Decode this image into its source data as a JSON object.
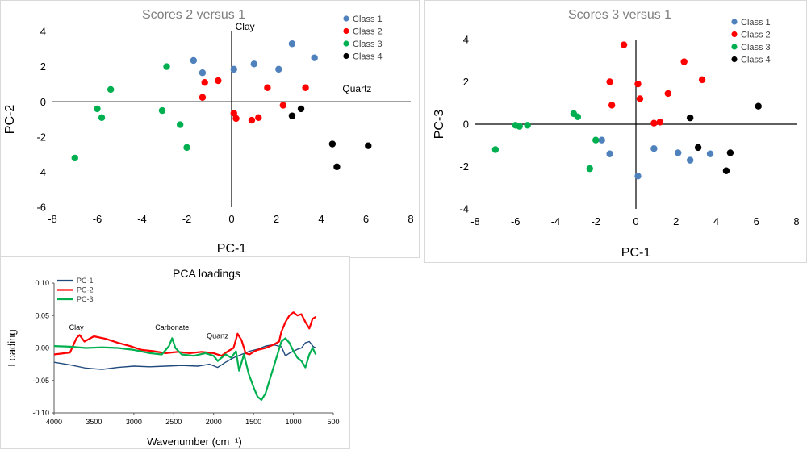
{
  "charts": [
    {
      "type": "scatter",
      "title": "Scores 2 versus 1",
      "xlabel": "PC-1",
      "ylabel": "PC-2",
      "xlim": [
        -8,
        8
      ],
      "ylim": [
        -6,
        4
      ],
      "xticks": [
        -8,
        -6,
        -4,
        -2,
        0,
        2,
        4,
        6,
        8
      ],
      "yticks": [
        -6,
        -4,
        -2,
        0,
        2,
        4
      ],
      "grid": false,
      "legend_position": "top-right",
      "annotations": [
        {
          "text": "Clay",
          "x": 0.6,
          "y": 4.1
        },
        {
          "text": "Quartz",
          "x": 5.6,
          "y": 0.55
        }
      ],
      "series": [
        {
          "name": "Class 1",
          "color": "#4f81bd",
          "points": [
            [
              -1.7,
              2.35
            ],
            [
              -1.3,
              1.65
            ],
            [
              0.1,
              1.85
            ],
            [
              1.0,
              2.15
            ],
            [
              2.1,
              1.85
            ],
            [
              2.7,
              3.3
            ],
            [
              3.7,
              2.5
            ]
          ]
        },
        {
          "name": "Class 2",
          "color": "#ff0000",
          "points": [
            [
              -1.2,
              1.1
            ],
            [
              -0.6,
              1.2
            ],
            [
              -1.3,
              0.25
            ],
            [
              1.6,
              0.8
            ],
            [
              3.3,
              0.8
            ],
            [
              0.1,
              -0.65
            ],
            [
              0.2,
              -0.95
            ],
            [
              0.9,
              -1.05
            ],
            [
              1.2,
              -0.9
            ],
            [
              2.3,
              -0.2
            ]
          ]
        },
        {
          "name": "Class 3",
          "color": "#00b050",
          "points": [
            [
              -7.0,
              -3.2
            ],
            [
              -6.0,
              -0.4
            ],
            [
              -5.8,
              -0.9
            ],
            [
              -5.4,
              0.7
            ],
            [
              -3.1,
              -0.5
            ],
            [
              -2.9,
              2.0
            ],
            [
              -2.3,
              -1.3
            ],
            [
              -2.0,
              -2.6
            ]
          ]
        },
        {
          "name": "Class 4",
          "color": "#000000",
          "points": [
            [
              2.7,
              -0.8
            ],
            [
              3.1,
              -0.4
            ],
            [
              4.5,
              -2.4
            ],
            [
              4.7,
              -3.7
            ],
            [
              6.1,
              -2.5
            ]
          ]
        }
      ]
    },
    {
      "type": "scatter",
      "title": "Scores 3 versus 1",
      "xlabel": "PC-1",
      "ylabel": "PC-3",
      "xlim": [
        -8,
        8
      ],
      "ylim": [
        -4,
        4
      ],
      "xticks": [
        -8,
        -6,
        -4,
        -2,
        0,
        2,
        4,
        6,
        8
      ],
      "yticks": [
        -4,
        -2,
        0,
        2,
        4
      ],
      "grid": false,
      "legend_position": "top-right",
      "annotations": [],
      "series": [
        {
          "name": "Class 1",
          "color": "#4f81bd",
          "points": [
            [
              -1.7,
              -0.75
            ],
            [
              -1.3,
              -1.4
            ],
            [
              0.1,
              -2.45
            ],
            [
              0.9,
              -1.15
            ],
            [
              2.1,
              -1.35
            ],
            [
              2.7,
              -1.7
            ],
            [
              3.7,
              -1.4
            ]
          ]
        },
        {
          "name": "Class 2",
          "color": "#ff0000",
          "points": [
            [
              -0.6,
              3.75
            ],
            [
              -1.3,
              2.0
            ],
            [
              -1.2,
              0.9
            ],
            [
              0.1,
              1.9
            ],
            [
              0.2,
              1.2
            ],
            [
              0.9,
              0.05
            ],
            [
              1.2,
              0.1
            ],
            [
              1.6,
              1.45
            ],
            [
              2.4,
              2.95
            ],
            [
              3.3,
              2.1
            ]
          ]
        },
        {
          "name": "Class 3",
          "color": "#00b050",
          "points": [
            [
              -7.0,
              -1.2
            ],
            [
              -6.0,
              -0.05
            ],
            [
              -5.8,
              -0.1
            ],
            [
              -5.4,
              -0.05
            ],
            [
              -3.1,
              0.5
            ],
            [
              -2.9,
              0.35
            ],
            [
              -2.0,
              -0.75
            ],
            [
              -2.3,
              -2.1
            ]
          ]
        },
        {
          "name": "Class 4",
          "color": "#000000",
          "points": [
            [
              2.7,
              0.3
            ],
            [
              3.1,
              -1.1
            ],
            [
              4.5,
              -2.2
            ],
            [
              4.7,
              -1.35
            ],
            [
              6.1,
              0.85
            ]
          ]
        }
      ]
    },
    {
      "type": "line",
      "title": "PCA loadings",
      "xlabel": "Wavenumber (cm⁻¹)",
      "ylabel": "Loading",
      "xlim": [
        4000,
        500
      ],
      "ylim": [
        -0.1,
        0.1
      ],
      "xticks": [
        4000,
        3500,
        3000,
        2500,
        2000,
        1500,
        1000,
        500
      ],
      "yticks": [
        0.1,
        0.05,
        0.0,
        -0.05,
        -0.1
      ],
      "ytick_labels": [
        "0.10",
        "0.05",
        "0.00",
        "-0.05",
        "-0.10"
      ],
      "grid": false,
      "legend_position": "top-left",
      "annotations": [
        {
          "text": "Clay",
          "x": 3720,
          "y": 0.028
        },
        {
          "text": "Carbonate",
          "x": 2520,
          "y": 0.028
        },
        {
          "text": "Quartz",
          "x": 1950,
          "y": 0.015
        }
      ],
      "series": [
        {
          "name": "PC-1",
          "color": "#1f497d",
          "points": [
            [
              4000,
              -0.022
            ],
            [
              3800,
              -0.026
            ],
            [
              3600,
              -0.031
            ],
            [
              3400,
              -0.033
            ],
            [
              3200,
              -0.03
            ],
            [
              3000,
              -0.028
            ],
            [
              2800,
              -0.029
            ],
            [
              2600,
              -0.028
            ],
            [
              2400,
              -0.027
            ],
            [
              2200,
              -0.028
            ],
            [
              2050,
              -0.025
            ],
            [
              1950,
              -0.03
            ],
            [
              1850,
              -0.022
            ],
            [
              1750,
              -0.015
            ],
            [
              1650,
              -0.01
            ],
            [
              1550,
              -0.005
            ],
            [
              1450,
              -0.002
            ],
            [
              1350,
              0.003
            ],
            [
              1250,
              0.005
            ],
            [
              1150,
              0.002
            ],
            [
              1100,
              -0.012
            ],
            [
              1050,
              -0.008
            ],
            [
              1000,
              -0.005
            ],
            [
              950,
              -0.002
            ],
            [
              900,
              0.0
            ],
            [
              850,
              0.008
            ],
            [
              800,
              0.01
            ],
            [
              750,
              0.002
            ],
            [
              720,
              0.0
            ]
          ]
        },
        {
          "name": "PC-2",
          "color": "#ff0000",
          "points": [
            [
              4000,
              -0.01
            ],
            [
              3800,
              -0.007
            ],
            [
              3720,
              0.015
            ],
            [
              3680,
              0.02
            ],
            [
              3620,
              0.01
            ],
            [
              3500,
              0.018
            ],
            [
              3350,
              0.014
            ],
            [
              3200,
              0.008
            ],
            [
              3050,
              0.003
            ],
            [
              2900,
              -0.003
            ],
            [
              2750,
              -0.005
            ],
            [
              2600,
              -0.008
            ],
            [
              2450,
              -0.006
            ],
            [
              2300,
              -0.008
            ],
            [
              2150,
              -0.006
            ],
            [
              2000,
              -0.008
            ],
            [
              1900,
              -0.012
            ],
            [
              1820,
              -0.005
            ],
            [
              1750,
              0.0
            ],
            [
              1700,
              0.022
            ],
            [
              1650,
              0.012
            ],
            [
              1600,
              -0.008
            ],
            [
              1550,
              -0.01
            ],
            [
              1500,
              -0.006
            ],
            [
              1450,
              -0.003
            ],
            [
              1350,
              0.0
            ],
            [
              1250,
              0.005
            ],
            [
              1180,
              0.01
            ],
            [
              1150,
              0.025
            ],
            [
              1100,
              0.04
            ],
            [
              1050,
              0.05
            ],
            [
              1000,
              0.055
            ],
            [
              950,
              0.05
            ],
            [
              900,
              0.052
            ],
            [
              850,
              0.04
            ],
            [
              800,
              0.03
            ],
            [
              760,
              0.045
            ],
            [
              720,
              0.048
            ]
          ]
        },
        {
          "name": "PC-3",
          "color": "#00b050",
          "points": [
            [
              4000,
              0.003
            ],
            [
              3800,
              0.002
            ],
            [
              3600,
              0.0
            ],
            [
              3400,
              0.001
            ],
            [
              3200,
              0.0
            ],
            [
              3000,
              -0.003
            ],
            [
              2800,
              -0.008
            ],
            [
              2650,
              -0.01
            ],
            [
              2560,
              0.003
            ],
            [
              2520,
              0.015
            ],
            [
              2480,
              0.0
            ],
            [
              2400,
              -0.01
            ],
            [
              2250,
              -0.012
            ],
            [
              2100,
              -0.008
            ],
            [
              2000,
              -0.012
            ],
            [
              1950,
              -0.02
            ],
            [
              1850,
              -0.01
            ],
            [
              1780,
              -0.015
            ],
            [
              1720,
              -0.005
            ],
            [
              1680,
              -0.035
            ],
            [
              1620,
              -0.01
            ],
            [
              1560,
              -0.04
            ],
            [
              1500,
              -0.06
            ],
            [
              1450,
              -0.075
            ],
            [
              1400,
              -0.08
            ],
            [
              1350,
              -0.07
            ],
            [
              1300,
              -0.05
            ],
            [
              1250,
              -0.03
            ],
            [
              1200,
              -0.01
            ],
            [
              1150,
              0.01
            ],
            [
              1100,
              0.015
            ],
            [
              1050,
              0.008
            ],
            [
              1000,
              -0.005
            ],
            [
              950,
              -0.015
            ],
            [
              900,
              -0.02
            ],
            [
              850,
              -0.03
            ],
            [
              800,
              -0.01
            ],
            [
              760,
              0.0
            ],
            [
              720,
              -0.01
            ]
          ]
        }
      ]
    }
  ]
}
